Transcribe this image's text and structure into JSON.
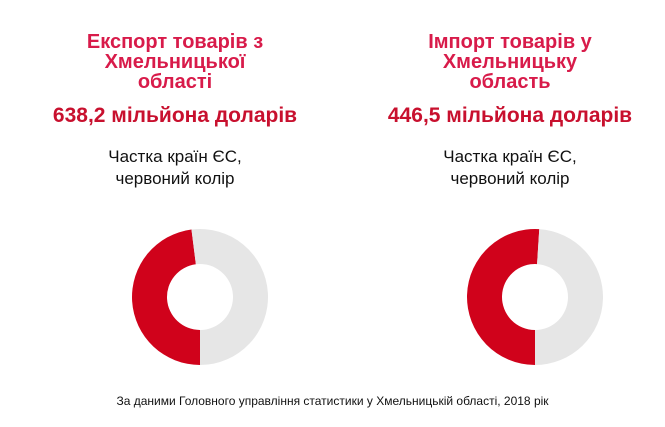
{
  "chart_data": [
    {
      "type": "pie",
      "title": "Експорт товарів з Хмельницької області",
      "subtitle": "638,2 мільйона доларів",
      "note": "Частка країн ЄС, червоний колір",
      "values": [
        48,
        52
      ],
      "colors": [
        "#d0021b",
        "#e6e6e6"
      ]
    },
    {
      "type": "pie",
      "title": "Імпорт товарів у Хмельницьку область",
      "subtitle": "446,5 мільйона доларів",
      "note": "Частка країн ЄС, червоний колір",
      "values": [
        51,
        49
      ],
      "colors": [
        "#d0021b",
        "#e6e6e6"
      ]
    }
  ],
  "source": "За даними Головного управління статистики у Хмельницькій області, 2018 рік"
}
